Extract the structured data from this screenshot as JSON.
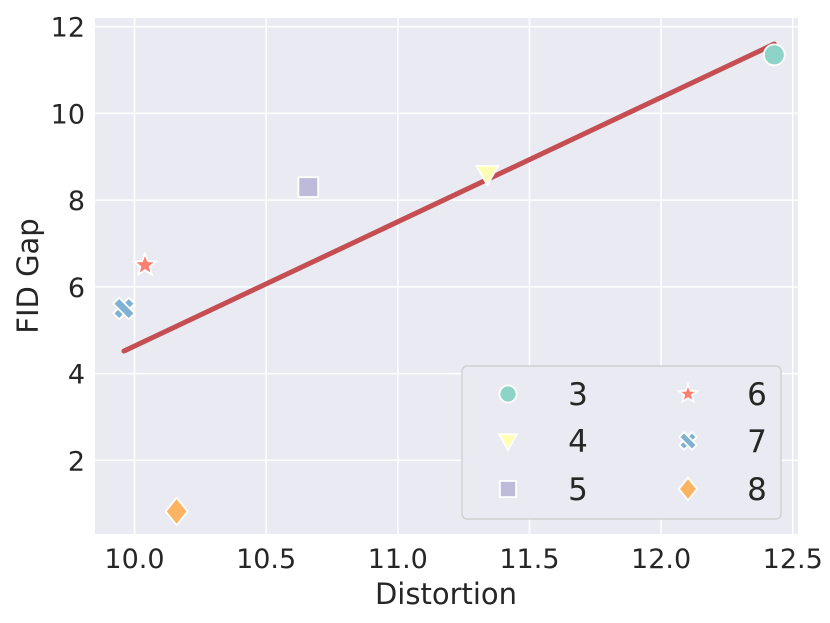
{
  "chart_data": {
    "type": "scatter",
    "xlabel": "Distortion",
    "ylabel": "FID Gap",
    "xlim": [
      9.85,
      12.52
    ],
    "ylim": [
      0.3,
      12.2
    ],
    "xticks": [
      "10.0",
      "10.5",
      "11.0",
      "11.5",
      "12.0",
      "12.5"
    ],
    "yticks": [
      "2",
      "4",
      "6",
      "8",
      "10",
      "12"
    ],
    "grid": true,
    "legend_position": "bottom-right",
    "series": [
      {
        "name": "3",
        "marker": "circle",
        "color": "#8dd3c7",
        "x": 12.43,
        "y": 11.35
      },
      {
        "name": "4",
        "marker": "triangle-down",
        "color": "#ffffb3",
        "x": 11.34,
        "y": 8.6
      },
      {
        "name": "5",
        "marker": "square",
        "color": "#bebada",
        "x": 10.66,
        "y": 8.3
      },
      {
        "name": "6",
        "marker": "star",
        "color": "#fb8072",
        "x": 10.04,
        "y": 6.5
      },
      {
        "name": "7",
        "marker": "x",
        "color": "#80b1d3",
        "x": 9.96,
        "y": 5.5
      },
      {
        "name": "8",
        "marker": "diamond",
        "color": "#fdb462",
        "x": 10.16,
        "y": 0.82
      }
    ],
    "fit_line": {
      "color": "#c44e52",
      "x": [
        9.96,
        12.43
      ],
      "y": [
        4.52,
        11.6
      ]
    }
  }
}
